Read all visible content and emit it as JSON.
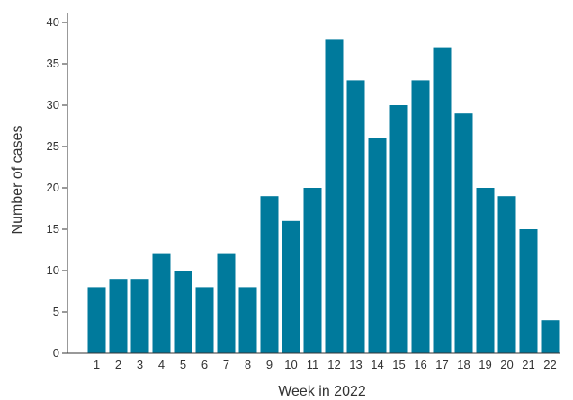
{
  "chart_data": {
    "type": "bar",
    "title": "",
    "xlabel": "Week in 2022",
    "ylabel": "Number of cases",
    "categories": [
      "1",
      "2",
      "3",
      "4",
      "5",
      "6",
      "7",
      "8",
      "9",
      "10",
      "11",
      "12",
      "13",
      "14",
      "15",
      "16",
      "17",
      "18",
      "19",
      "20",
      "21",
      "22"
    ],
    "values": [
      8,
      9,
      9,
      12,
      10,
      8,
      12,
      8,
      19,
      16,
      20,
      38,
      33,
      26,
      30,
      33,
      37,
      29,
      20,
      19,
      15,
      4
    ],
    "ylim": [
      0,
      40
    ],
    "yticks": [
      "0",
      "5",
      "10",
      "15",
      "20",
      "25",
      "30",
      "35",
      "40"
    ],
    "grid": false,
    "colors": {
      "bar": "#007a9c",
      "axis": "#333333"
    }
  }
}
